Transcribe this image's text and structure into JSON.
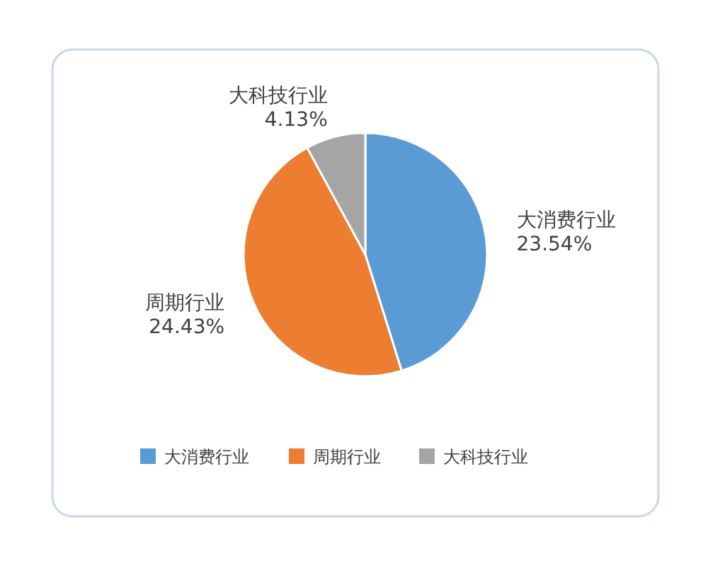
{
  "chart_data": {
    "type": "pie",
    "categories": [
      "大消费行业",
      "周期行业",
      "大科技行业"
    ],
    "values": [
      23.54,
      24.43,
      4.13
    ],
    "colors": [
      "#5b9bd5",
      "#ed7d31",
      "#a5a5a5"
    ],
    "value_labels": [
      "23.54%",
      "24.43%",
      "4.13%"
    ],
    "legend": "bottom"
  }
}
